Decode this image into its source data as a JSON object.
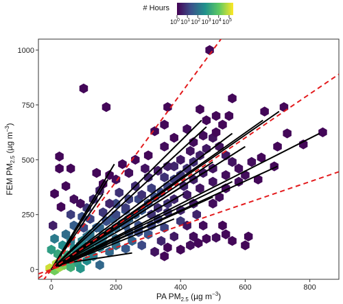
{
  "chart_data": {
    "type": "hexbin-scatter",
    "xlabel": {
      "main": "PA PM",
      "sub": "2.5",
      "units": "(µg m",
      "sup": "−3",
      "close": ")"
    },
    "ylabel": {
      "main": "FEM PM",
      "sub": "2.5",
      "units": "(µg m",
      "sup": "−3",
      "close": ")"
    },
    "xlim": [
      -40,
      890
    ],
    "ylim": [
      -45,
      1050
    ],
    "xticks": [
      0,
      200,
      400,
      600,
      800
    ],
    "yticks": [
      0,
      250,
      500,
      750,
      1000
    ],
    "legend": {
      "title": "# Hours",
      "placement": "top-center",
      "ticks": [
        {
          "base": "10",
          "exp": "0"
        },
        {
          "base": "10",
          "exp": "1"
        },
        {
          "base": "10",
          "exp": "2"
        },
        {
          "base": "10",
          "exp": "3"
        },
        {
          "base": "10",
          "exp": "4"
        },
        {
          "base": "10",
          "exp": "5"
        }
      ],
      "log_range": [
        0,
        5.4
      ],
      "colors": [
        "#440154",
        "#3b528b",
        "#21918c",
        "#5ec962",
        "#fde725"
      ]
    },
    "reference_lines": [
      {
        "slope": 2.0,
        "style": "dashed",
        "color": "#e31a1c"
      },
      {
        "slope": 1.0,
        "style": "dashed",
        "color": "#e31a1c"
      },
      {
        "slope": 0.5,
        "style": "dashed",
        "color": "#e31a1c"
      }
    ],
    "fit_lines": [
      {
        "x": [
          0,
          175
        ],
        "y": [
          0,
          410
        ]
      },
      {
        "x": [
          0,
          195
        ],
        "y": [
          0,
          480
        ]
      },
      {
        "x": [
          0,
          160
        ],
        "y": [
          0,
          345
        ]
      },
      {
        "x": [
          0,
          465
        ],
        "y": [
          0,
          680
        ]
      },
      {
        "x": [
          0,
          480
        ],
        "y": [
          0,
          650
        ]
      },
      {
        "x": [
          0,
          560
        ],
        "y": [
          0,
          620
        ]
      },
      {
        "x": [
          0,
          600
        ],
        "y": [
          0,
          560
        ]
      },
      {
        "x": [
          0,
          655
        ],
        "y": [
          0,
          680
        ]
      },
      {
        "x": [
          0,
          705
        ],
        "y": [
          0,
          720
        ]
      },
      {
        "x": [
          0,
          500
        ],
        "y": [
          0,
          490
        ]
      },
      {
        "x": [
          0,
          470
        ],
        "y": [
          0,
          440
        ]
      },
      {
        "x": [
          0,
          410
        ],
        "y": [
          0,
          345
        ]
      },
      {
        "x": [
          0,
          830
        ],
        "y": [
          0,
          620
        ]
      },
      {
        "x": [
          0,
          560
        ],
        "y": [
          0,
          400
        ]
      },
      {
        "x": [
          0,
          700
        ],
        "y": [
          0,
          470
        ]
      },
      {
        "x": [
          0,
          380
        ],
        "y": [
          0,
          230
        ]
      },
      {
        "x": [
          0,
          500
        ],
        "y": [
          0,
          330
        ]
      },
      {
        "x": [
          0,
          270
        ],
        "y": [
          0,
          250
        ]
      },
      {
        "x": [
          50,
          250
        ],
        "y": [
          30,
          75
        ]
      }
    ],
    "hexbins": [
      [
        -5,
        5,
        5.0
      ],
      [
        10,
        -5,
        4.2
      ],
      [
        25,
        10,
        4.6
      ],
      [
        15,
        25,
        4.8
      ],
      [
        40,
        20,
        4.3
      ],
      [
        55,
        35,
        3.8
      ],
      [
        30,
        45,
        3.6
      ],
      [
        70,
        50,
        3.4
      ],
      [
        50,
        65,
        3.2
      ],
      [
        85,
        70,
        3.0
      ],
      [
        100,
        90,
        2.8
      ],
      [
        70,
        95,
        2.6
      ],
      [
        120,
        110,
        2.6
      ],
      [
        95,
        130,
        2.4
      ],
      [
        140,
        125,
        2.3
      ],
      [
        160,
        150,
        2.2
      ],
      [
        120,
        160,
        2.1
      ],
      [
        180,
        170,
        2.0
      ],
      [
        200,
        190,
        1.9
      ],
      [
        150,
        190,
        1.8
      ],
      [
        220,
        210,
        1.8
      ],
      [
        240,
        230,
        1.7
      ],
      [
        190,
        230,
        1.6
      ],
      [
        260,
        250,
        1.6
      ],
      [
        280,
        270,
        1.5
      ],
      [
        230,
        270,
        1.4
      ],
      [
        300,
        300,
        1.4
      ],
      [
        320,
        330,
        1.3
      ],
      [
        270,
        320,
        1.2
      ],
      [
        340,
        350,
        1.2
      ],
      [
        360,
        380,
        1.1
      ],
      [
        310,
        370,
        1.0
      ],
      [
        380,
        410,
        1.0
      ],
      [
        400,
        430,
        0.9
      ],
      [
        350,
        420,
        0.8
      ],
      [
        420,
        460,
        0.8
      ],
      [
        440,
        490,
        0.7
      ],
      [
        380,
        470,
        0.6
      ],
      [
        460,
        520,
        0.5
      ],
      [
        480,
        550,
        0.4
      ],
      [
        200,
        110,
        2.0
      ],
      [
        250,
        130,
        1.7
      ],
      [
        300,
        160,
        1.4
      ],
      [
        350,
        190,
        1.1
      ],
      [
        400,
        220,
        0.9
      ],
      [
        450,
        250,
        0.6
      ],
      [
        180,
        80,
        1.8
      ],
      [
        230,
        95,
        1.5
      ],
      [
        280,
        110,
        1.2
      ],
      [
        130,
        60,
        2.2
      ],
      [
        80,
        30,
        3.0
      ],
      [
        110,
        40,
        2.6
      ],
      [
        150,
        20,
        1.8
      ],
      [
        60,
        10,
        3.4
      ],
      [
        90,
        5,
        2.8
      ],
      [
        20,
        70,
        3.2
      ],
      [
        0,
        90,
        3.0
      ],
      [
        35,
        110,
        2.6
      ],
      [
        10,
        140,
        2.2
      ],
      [
        45,
        160,
        1.9
      ],
      [
        70,
        200,
        1.6
      ],
      [
        95,
        240,
        1.3
      ],
      [
        60,
        250,
        1.0
      ],
      [
        110,
        280,
        0.9
      ],
      [
        130,
        320,
        0.7
      ],
      [
        150,
        360,
        0.5
      ],
      [
        200,
        300,
        1.2
      ],
      [
        240,
        320,
        1.0
      ],
      [
        210,
        350,
        0.8
      ],
      [
        260,
        380,
        0.7
      ],
      [
        300,
        420,
        0.6
      ],
      [
        330,
        450,
        0.4
      ],
      [
        290,
        460,
        0.3
      ],
      [
        360,
        470,
        0.5
      ],
      [
        400,
        500,
        0.4
      ],
      [
        430,
        540,
        0.3
      ],
      [
        440,
        580,
        0.2
      ],
      [
        470,
        610,
        0.2
      ],
      [
        500,
        600,
        0.3
      ],
      [
        520,
        560,
        0.3
      ],
      [
        540,
        520,
        0.4
      ],
      [
        560,
        490,
        0.3
      ],
      [
        580,
        460,
        0.2
      ],
      [
        600,
        430,
        0.2
      ],
      [
        620,
        490,
        0.2
      ],
      [
        650,
        510,
        0.1
      ],
      [
        700,
        560,
        0.1
      ],
      [
        720,
        740,
        0.1
      ],
      [
        660,
        720,
        0.1
      ],
      [
        730,
        620,
        0.1
      ],
      [
        780,
        570,
        0.1
      ],
      [
        840,
        625,
        0.1
      ],
      [
        560,
        780,
        0.1
      ],
      [
        510,
        700,
        0.1
      ],
      [
        480,
        680,
        0.1
      ],
      [
        460,
        730,
        0.1
      ],
      [
        420,
        640,
        0.2
      ],
      [
        380,
        600,
        0.1
      ],
      [
        350,
        560,
        0.2
      ],
      [
        300,
        520,
        0.1
      ],
      [
        260,
        500,
        0.1
      ],
      [
        220,
        480,
        0.1
      ],
      [
        180,
        430,
        0.1
      ],
      [
        160,
        390,
        0.1
      ],
      [
        140,
        440,
        0.1
      ],
      [
        170,
        740,
        0.1
      ],
      [
        360,
        740,
        0.1
      ],
      [
        490,
        1000,
        0.1
      ],
      [
        100,
        825,
        0.1
      ],
      [
        510,
        625,
        0.1
      ],
      [
        530,
        660,
        0.1
      ],
      [
        550,
        700,
        0.1
      ],
      [
        350,
        660,
        0.1
      ],
      [
        320,
        630,
        0.1
      ],
      [
        30,
        285,
        0.1
      ],
      [
        25,
        515,
        0.1
      ],
      [
        25,
        460,
        0.1
      ],
      [
        70,
        320,
        0.2
      ],
      [
        90,
        300,
        0.2
      ],
      [
        45,
        380,
        0.1
      ],
      [
        10,
        345,
        0.1
      ],
      [
        60,
        460,
        0.1
      ],
      [
        5,
        200,
        0.5
      ],
      [
        200,
        410,
        0.2
      ],
      [
        240,
        440,
        0.2
      ],
      [
        310,
        250,
        0.8
      ],
      [
        330,
        280,
        0.7
      ],
      [
        380,
        320,
        0.6
      ],
      [
        420,
        340,
        0.4
      ],
      [
        460,
        370,
        0.3
      ],
      [
        500,
        400,
        0.3
      ],
      [
        540,
        430,
        0.2
      ],
      [
        580,
        400,
        0.2
      ],
      [
        640,
        410,
        0.1
      ],
      [
        690,
        470,
        0.1
      ],
      [
        540,
        370,
        0.2
      ],
      [
        520,
        330,
        0.2
      ],
      [
        500,
        300,
        0.2
      ],
      [
        480,
        140,
        0.1
      ],
      [
        510,
        145,
        0.2
      ],
      [
        540,
        160,
        0.1
      ],
      [
        560,
        130,
        0.1
      ],
      [
        455,
        120,
        0.1
      ],
      [
        440,
        150,
        0.2
      ],
      [
        420,
        200,
        0.3
      ],
      [
        380,
        150,
        0.4
      ],
      [
        340,
        130,
        0.6
      ],
      [
        320,
        80,
        0.3
      ],
      [
        350,
        60,
        0.1
      ],
      [
        430,
        110,
        0.2
      ],
      [
        470,
        200,
        0.2
      ],
      [
        530,
        200,
        0.1
      ],
      [
        610,
        150,
        0.1
      ],
      [
        600,
        110,
        0.1
      ],
      [
        360,
        100,
        0.1
      ],
      [
        400,
        90,
        0.1
      ],
      [
        100,
        190,
        1.2
      ],
      [
        120,
        230,
        1.1
      ],
      [
        160,
        260,
        0.9
      ],
      [
        180,
        300,
        0.6
      ],
      [
        170,
        220,
        1.3
      ],
      [
        140,
        190,
        1.6
      ],
      [
        110,
        150,
        2.0
      ],
      [
        240,
        170,
        1.4
      ],
      [
        270,
        200,
        1.3
      ],
      [
        330,
        230,
        1.0
      ],
      [
        360,
        260,
        0.8
      ],
      [
        200,
        250,
        1.2
      ],
      [
        230,
        280,
        1.0
      ],
      [
        280,
        340,
        0.8
      ],
      [
        410,
        380,
        0.6
      ],
      [
        440,
        410,
        0.5
      ],
      [
        470,
        440,
        0.4
      ],
      [
        500,
        460,
        0.3
      ],
      [
        360,
        300,
        0.8
      ],
      [
        400,
        270,
        0.6
      ],
      [
        440,
        300,
        0.4
      ],
      [
        270,
        170,
        1.2
      ],
      [
        310,
        200,
        1.1
      ],
      [
        230,
        200,
        1.5
      ],
      [
        150,
        100,
        2.3
      ],
      [
        90,
        110,
        2.5
      ],
      [
        120,
        80,
        2.4
      ],
      [
        60,
        130,
        2.2
      ],
      [
        200,
        140,
        1.9
      ],
      [
        160,
        120,
        2.1
      ]
    ]
  }
}
